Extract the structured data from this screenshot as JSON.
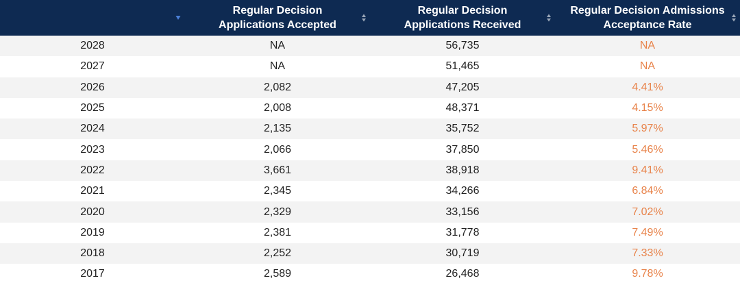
{
  "colors": {
    "header_bg": "#0e2a52",
    "header_text": "#ffffff",
    "stripe": "#f3f3f3",
    "rate_text": "#e8834a",
    "sort_active": "#4a7fd6",
    "sort_inactive": "#9aa6b8"
  },
  "header": {
    "columns": [
      {
        "label": "",
        "sort_icon": "sort-desc-active-icon"
      },
      {
        "label": "Regular Decision\nApplications Accepted",
        "sort_icon": "sort-both-icon"
      },
      {
        "label": "Regular Decision\nApplications Received",
        "sort_icon": "sort-both-icon"
      },
      {
        "label": "Regular Decision Admissions\nAcceptance Rate",
        "sort_icon": "sort-both-icon"
      }
    ]
  },
  "rows": [
    {
      "year": "2028",
      "accepted": "NA",
      "received": "56,735",
      "rate": "NA"
    },
    {
      "year": "2027",
      "accepted": "NA",
      "received": "51,465",
      "rate": "NA"
    },
    {
      "year": "2026",
      "accepted": "2,082",
      "received": "47,205",
      "rate": "4.41%"
    },
    {
      "year": "2025",
      "accepted": "2,008",
      "received": "48,371",
      "rate": "4.15%"
    },
    {
      "year": "2024",
      "accepted": "2,135",
      "received": "35,752",
      "rate": "5.97%"
    },
    {
      "year": "2023",
      "accepted": "2,066",
      "received": "37,850",
      "rate": "5.46%"
    },
    {
      "year": "2022",
      "accepted": "3,661",
      "received": "38,918",
      "rate": "9.41%"
    },
    {
      "year": "2021",
      "accepted": "2,345",
      "received": "34,266",
      "rate": "6.84%"
    },
    {
      "year": "2020",
      "accepted": "2,329",
      "received": "33,156",
      "rate": "7.02%"
    },
    {
      "year": "2019",
      "accepted": "2,381",
      "received": "31,778",
      "rate": "7.49%"
    },
    {
      "year": "2018",
      "accepted": "2,252",
      "received": "30,719",
      "rate": "7.33%"
    },
    {
      "year": "2017",
      "accepted": "2,589",
      "received": "26,468",
      "rate": "9.78%"
    }
  ]
}
